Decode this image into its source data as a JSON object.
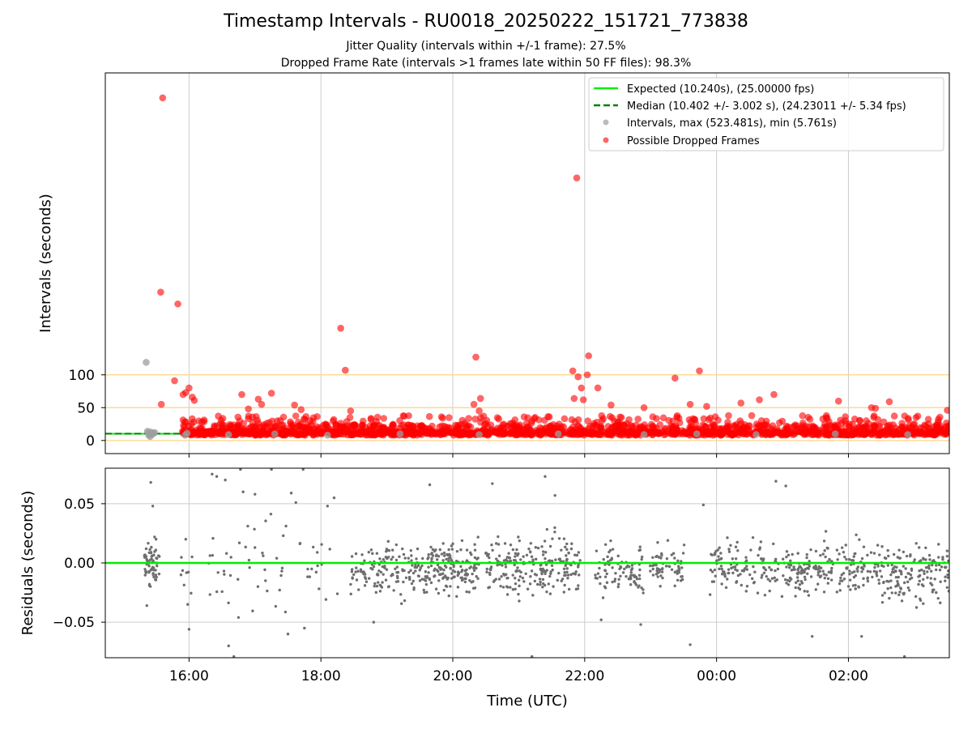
{
  "figure": {
    "title": "Timestamp Intervals - RU0018_20250222_151721_773838",
    "subtitle_jitter": "Jitter Quality (intervals within +/-1 frame): 27.5%",
    "subtitle_dropped": "Dropped Frame Rate (intervals >1 frames late within 50 FF files): 98.3%",
    "colors": {
      "expected_line": "#00ee00",
      "median_line": "#008000",
      "interval_points": "#9e9e9e",
      "dropped_points": "#ff0000",
      "residual_points": "#6e6e6e",
      "threshold_lines": "#ffd27f",
      "grid": "#cccccc"
    }
  },
  "chart_data": [
    {
      "type": "scatter",
      "ylabel": "Intervals (seconds)",
      "x_unit": "hours since 00:00 UTC of 2025-02-22",
      "xlim": [
        14.73,
        27.53
      ],
      "ylim": [
        -20,
        560
      ],
      "yticks": [
        "0",
        "50",
        "100"
      ],
      "ytick_values": [
        0,
        50,
        100
      ],
      "grid": "vertical",
      "legend_position": "upper right",
      "legend": {
        "expected": "Expected (10.240s), (25.00000 fps)",
        "median": "Median (10.402 +/- 3.002 s), (24.23011 +/- 5.34 fps)",
        "intervals": "Intervals, max (523.481s), min (5.761s)",
        "dropped": "Possible Dropped Frames"
      },
      "expected_interval": 10.24,
      "median_interval": 10.402,
      "threshold_lines": [
        0,
        50,
        100
      ],
      "series": [
        {
          "name": "Intervals, max (523.481s), min (5.761s)",
          "color": "gray",
          "points": [
            [
              15.35,
              119
            ],
            [
              15.37,
              14
            ],
            [
              15.38,
              12
            ],
            [
              15.39,
              8
            ],
            [
              15.4,
              10
            ],
            [
              15.41,
              6
            ],
            [
              15.42,
              13
            ],
            [
              15.44,
              9
            ],
            [
              15.46,
              11
            ],
            [
              15.48,
              12
            ],
            [
              15.94,
              8
            ],
            [
              15.97,
              11
            ],
            [
              16.6,
              9
            ],
            [
              17.3,
              10
            ],
            [
              18.1,
              8
            ],
            [
              19.2,
              10
            ],
            [
              20.4,
              9
            ],
            [
              21.6,
              10
            ],
            [
              22.9,
              9
            ],
            [
              23.7,
              10
            ],
            [
              24.6,
              9
            ],
            [
              25.8,
              10
            ],
            [
              26.9,
              9
            ]
          ]
        },
        {
          "name": "Possible Dropped Frames",
          "color": "red",
          "points": [
            [
              15.6,
              522
            ],
            [
              15.57,
              226
            ],
            [
              15.83,
              208
            ],
            [
              15.78,
              91
            ],
            [
              15.91,
              70
            ],
            [
              15.95,
              73
            ],
            [
              16.0,
              80
            ],
            [
              16.05,
              66
            ],
            [
              16.08,
              61
            ],
            [
              15.58,
              55
            ],
            [
              16.8,
              70
            ],
            [
              16.9,
              48
            ],
            [
              17.05,
              63
            ],
            [
              17.1,
              55
            ],
            [
              17.25,
              72
            ],
            [
              17.6,
              54
            ],
            [
              17.7,
              47
            ],
            [
              18.3,
              171
            ],
            [
              18.37,
              107
            ],
            [
              18.45,
              45
            ],
            [
              18.44,
              35
            ],
            [
              20.35,
              127
            ],
            [
              20.32,
              55
            ],
            [
              20.42,
              64
            ],
            [
              20.4,
              45
            ],
            [
              21.82,
              106
            ],
            [
              21.9,
              97
            ],
            [
              21.95,
              80
            ],
            [
              21.84,
              64
            ],
            [
              21.98,
              62
            ],
            [
              22.04,
              100
            ],
            [
              21.88,
              400
            ],
            [
              22.06,
              129
            ],
            [
              22.2,
              80
            ],
            [
              22.4,
              54
            ],
            [
              22.9,
              50
            ],
            [
              23.37,
              95
            ],
            [
              23.6,
              55
            ],
            [
              23.74,
              106
            ],
            [
              23.85,
              52
            ],
            [
              24.37,
              57
            ],
            [
              24.65,
              62
            ],
            [
              24.87,
              70
            ],
            [
              25.85,
              60
            ],
            [
              26.35,
              50
            ],
            [
              26.41,
              49
            ],
            [
              26.62,
              59
            ],
            [
              27.5,
              46
            ]
          ]
        }
      ]
    },
    {
      "type": "scatter",
      "xlabel": "Time (UTC)",
      "ylabel": "Residuals (seconds)",
      "x_unit": "hours since 00:00 UTC of 2025-02-22",
      "xlim": [
        14.73,
        27.53
      ],
      "ylim": [
        -0.08,
        0.08
      ],
      "xticks": [
        "16:00",
        "18:00",
        "20:00",
        "22:00",
        "00:00",
        "02:00"
      ],
      "xtick_values": [
        16,
        18,
        20,
        22,
        24,
        26
      ],
      "yticks": [
        "0.05",
        "0.00",
        "−0.05"
      ],
      "ytick_values": [
        0.05,
        0,
        -0.05
      ],
      "grid": "both",
      "reference_line": 0,
      "series": [
        {
          "name": "Residuals",
          "color": "gray",
          "points": [
            [
              15.42,
              0.068
            ],
            [
              15.45,
              0.048
            ],
            [
              15.36,
              -0.036
            ],
            [
              15.4,
              -0.018
            ],
            [
              15.5,
              0.02
            ],
            [
              15.35,
              0.012
            ],
            [
              15.47,
              -0.006
            ],
            [
              15.95,
              0.02
            ],
            [
              15.98,
              -0.035
            ],
            [
              16.0,
              -0.056
            ],
            [
              16.35,
              0.075
            ],
            [
              16.42,
              0.073
            ],
            [
              16.55,
              0.07
            ],
            [
              16.78,
              0.079
            ],
            [
              16.82,
              0.06
            ],
            [
              16.6,
              -0.07
            ],
            [
              16.68,
              -0.079
            ],
            [
              16.75,
              -0.046
            ],
            [
              17.0,
              0.058
            ],
            [
              17.25,
              0.079
            ],
            [
              17.55,
              0.059
            ],
            [
              17.62,
              0.051
            ],
            [
              17.73,
              0.079
            ],
            [
              17.5,
              -0.06
            ],
            [
              17.75,
              -0.055
            ],
            [
              18.2,
              0.055
            ],
            [
              18.1,
              0.048
            ],
            [
              18.25,
              -0.026
            ],
            [
              18.8,
              -0.05
            ],
            [
              19.65,
              0.066
            ],
            [
              20.6,
              0.067
            ],
            [
              21.2,
              -0.079
            ],
            [
              21.4,
              0.073
            ],
            [
              21.55,
              0.057
            ],
            [
              22.25,
              -0.048
            ],
            [
              22.85,
              -0.052
            ],
            [
              23.8,
              0.049
            ],
            [
              23.6,
              -0.069
            ],
            [
              24.9,
              0.069
            ],
            [
              25.05,
              0.065
            ],
            [
              25.3,
              -0.017
            ],
            [
              25.45,
              -0.062
            ],
            [
              26.2,
              -0.062
            ],
            [
              26.85,
              -0.079
            ]
          ],
          "clusters": [
            {
              "x_range": [
                15.32,
                15.55
              ],
              "n": 60,
              "y_range": [
                -0.035,
                0.03
              ]
            },
            {
              "x_range": [
                15.85,
                16.05
              ],
              "n": 8,
              "y_range": [
                -0.035,
                0.02
              ]
            },
            {
              "x_range": [
                16.3,
                18.15
              ],
              "n": 55,
              "y_range": [
                -0.07,
                0.075
              ]
            },
            {
              "x_range": [
                18.45,
                19.6
              ],
              "n": 150,
              "y_range": [
                -0.048,
                0.035
              ]
            },
            {
              "x_range": [
                19.6,
                20.4
              ],
              "n": 160,
              "y_range": [
                -0.045,
                0.038
              ]
            },
            {
              "x_range": [
                20.5,
                21.95
              ],
              "n": 230,
              "y_range": [
                -0.045,
                0.04
              ]
            },
            {
              "x_range": [
                22.15,
                23.55
              ],
              "n": 150,
              "y_range": [
                -0.045,
                0.035
              ]
            },
            {
              "x_range": [
                23.9,
                25.3
              ],
              "n": 160,
              "y_range": [
                -0.045,
                0.035
              ]
            },
            {
              "x_range": [
                25.3,
                26.3
              ],
              "n": 130,
              "y_range": [
                -0.045,
                0.035
              ]
            },
            {
              "x_range": [
                26.3,
                27.53
              ],
              "n": 170,
              "y_range": [
                -0.05,
                0.035
              ]
            }
          ]
        }
      ]
    }
  ]
}
